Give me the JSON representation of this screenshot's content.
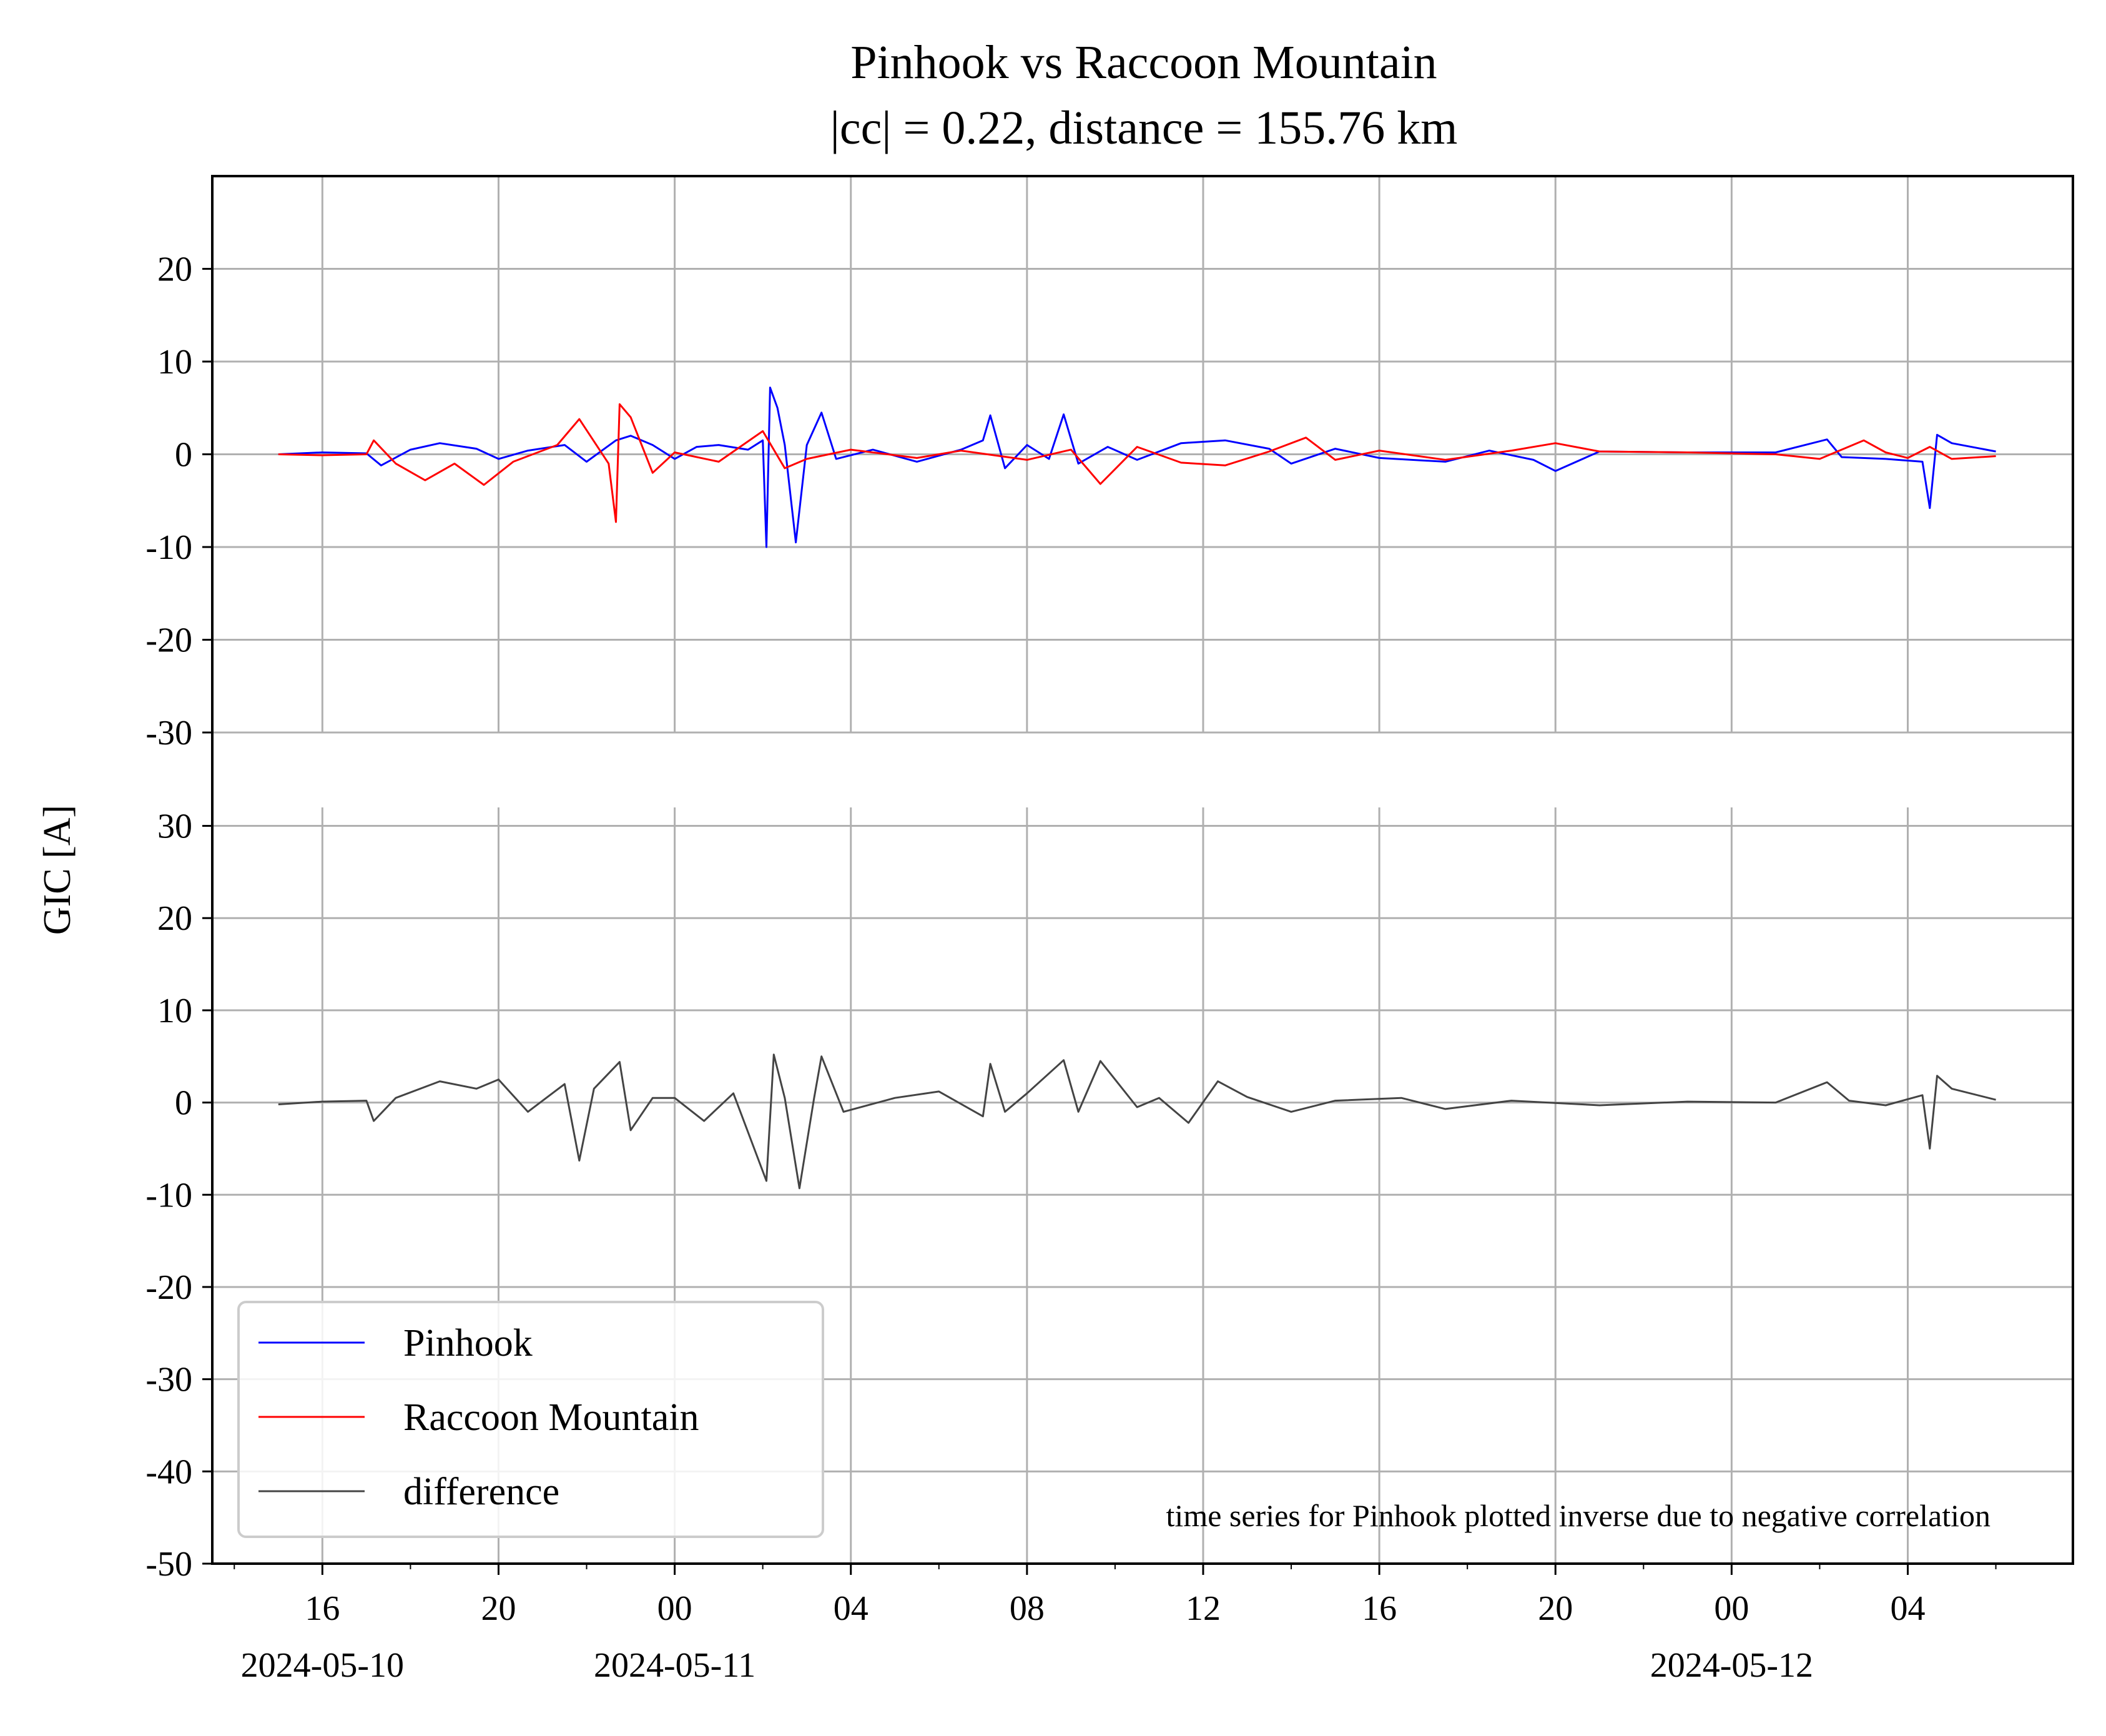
{
  "chart_data": {
    "type": "line",
    "title": "Pinhook vs Raccoon Mountain",
    "subtitle": "|cc| = 0.22, distance = 155.76 km",
    "ylabel": "GIC [A]",
    "xlabel": "",
    "annotation": "time series for Pinhook plotted inverse due to negative correlation",
    "grid": true,
    "legend_placement": "lower-left",
    "x_range": [
      "2024-05-10 13:30",
      "2024-05-12 07:45"
    ],
    "x_ticks": [
      {
        "time": "2024-05-10 16:00",
        "label": "16",
        "date_label": "2024-05-10"
      },
      {
        "time": "2024-05-10 20:00",
        "label": "20",
        "date_label": ""
      },
      {
        "time": "2024-05-11 00:00",
        "label": "00",
        "date_label": "2024-05-11"
      },
      {
        "time": "2024-05-11 04:00",
        "label": "04",
        "date_label": ""
      },
      {
        "time": "2024-05-11 08:00",
        "label": "08",
        "date_label": ""
      },
      {
        "time": "2024-05-11 12:00",
        "label": "12",
        "date_label": ""
      },
      {
        "time": "2024-05-11 16:00",
        "label": "16",
        "date_label": ""
      },
      {
        "time": "2024-05-11 20:00",
        "label": "20",
        "date_label": ""
      },
      {
        "time": "2024-05-12 00:00",
        "label": "00",
        "date_label": "2024-05-12"
      },
      {
        "time": "2024-05-12 04:00",
        "label": "04",
        "date_label": ""
      }
    ],
    "panels": [
      {
        "name": "top",
        "ylim": [
          -30,
          30
        ],
        "yticks": [
          20,
          10,
          0,
          -10,
          -20,
          -30
        ],
        "ytick_labels": [
          "20",
          "10",
          "0",
          "-10",
          "-20",
          "-30"
        ],
        "series": [
          {
            "name": "Pinhook",
            "color": "#0000ff",
            "points": [
              [
                "2024-05-10 15:00",
                0.0
              ],
              [
                "2024-05-10 16:00",
                0.2
              ],
              [
                "2024-05-10 17:00",
                0.1
              ],
              [
                "2024-05-10 17:20",
                -1.2
              ],
              [
                "2024-05-10 18:00",
                0.5
              ],
              [
                "2024-05-10 18:40",
                1.2
              ],
              [
                "2024-05-10 19:30",
                0.6
              ],
              [
                "2024-05-10 20:00",
                -0.5
              ],
              [
                "2024-05-10 20:40",
                0.4
              ],
              [
                "2024-05-10 21:30",
                1.0
              ],
              [
                "2024-05-10 22:00",
                -0.8
              ],
              [
                "2024-05-10 22:40",
                1.5
              ],
              [
                "2024-05-10 23:00",
                2.0
              ],
              [
                "2024-05-10 23:30",
                1.0
              ],
              [
                "2024-05-11 00:00",
                -0.5
              ],
              [
                "2024-05-11 00:30",
                0.8
              ],
              [
                "2024-05-11 01:00",
                1.0
              ],
              [
                "2024-05-11 01:40",
                0.5
              ],
              [
                "2024-05-11 02:00",
                1.5
              ],
              [
                "2024-05-11 02:05",
                -10.0
              ],
              [
                "2024-05-11 02:10",
                7.2
              ],
              [
                "2024-05-11 02:20",
                5.0
              ],
              [
                "2024-05-11 02:30",
                1.0
              ],
              [
                "2024-05-11 02:45",
                -9.5
              ],
              [
                "2024-05-11 03:00",
                1.0
              ],
              [
                "2024-05-11 03:20",
                4.5
              ],
              [
                "2024-05-11 03:40",
                -0.5
              ],
              [
                "2024-05-11 04:30",
                0.5
              ],
              [
                "2024-05-11 05:30",
                -0.8
              ],
              [
                "2024-05-11 06:30",
                0.5
              ],
              [
                "2024-05-11 07:00",
                1.5
              ],
              [
                "2024-05-11 07:10",
                4.2
              ],
              [
                "2024-05-11 07:30",
                -1.5
              ],
              [
                "2024-05-11 08:00",
                1.0
              ],
              [
                "2024-05-11 08:30",
                -0.5
              ],
              [
                "2024-05-11 08:50",
                4.3
              ],
              [
                "2024-05-11 09:10",
                -1.0
              ],
              [
                "2024-05-11 09:50",
                0.8
              ],
              [
                "2024-05-11 10:30",
                -0.6
              ],
              [
                "2024-05-11 11:30",
                1.2
              ],
              [
                "2024-05-11 12:30",
                1.5
              ],
              [
                "2024-05-11 13:30",
                0.6
              ],
              [
                "2024-05-11 14:00",
                -1.0
              ],
              [
                "2024-05-11 15:00",
                0.6
              ],
              [
                "2024-05-11 16:00",
                -0.4
              ],
              [
                "2024-05-11 17:30",
                -0.8
              ],
              [
                "2024-05-11 18:30",
                0.4
              ],
              [
                "2024-05-11 19:30",
                -0.6
              ],
              [
                "2024-05-11 20:00",
                -1.8
              ],
              [
                "2024-05-11 21:00",
                0.3
              ],
              [
                "2024-05-11 23:00",
                0.2
              ],
              [
                "2024-05-12 01:00",
                0.2
              ],
              [
                "2024-05-12 02:10",
                1.6
              ],
              [
                "2024-05-12 02:30",
                -0.3
              ],
              [
                "2024-05-12 03:30",
                -0.5
              ],
              [
                "2024-05-12 04:20",
                -0.8
              ],
              [
                "2024-05-12 04:30",
                -5.8
              ],
              [
                "2024-05-12 04:40",
                2.1
              ],
              [
                "2024-05-12 05:00",
                1.2
              ],
              [
                "2024-05-12 06:00",
                0.3
              ]
            ]
          },
          {
            "name": "Raccoon Mountain",
            "color": "#ff0000",
            "points": [
              [
                "2024-05-10 15:00",
                0.0
              ],
              [
                "2024-05-10 16:00",
                -0.1
              ],
              [
                "2024-05-10 17:00",
                0.0
              ],
              [
                "2024-05-10 17:10",
                1.5
              ],
              [
                "2024-05-10 17:40",
                -1.0
              ],
              [
                "2024-05-10 18:20",
                -2.8
              ],
              [
                "2024-05-10 19:00",
                -1.0
              ],
              [
                "2024-05-10 19:40",
                -3.3
              ],
              [
                "2024-05-10 20:20",
                -0.8
              ],
              [
                "2024-05-10 21:20",
                1.0
              ],
              [
                "2024-05-10 21:50",
                3.8
              ],
              [
                "2024-05-10 22:30",
                -1.0
              ],
              [
                "2024-05-10 22:40",
                -7.3
              ],
              [
                "2024-05-10 22:45",
                5.4
              ],
              [
                "2024-05-10 23:00",
                4.0
              ],
              [
                "2024-05-10 23:30",
                -2.0
              ],
              [
                "2024-05-11 00:00",
                0.2
              ],
              [
                "2024-05-11 01:00",
                -0.8
              ],
              [
                "2024-05-11 02:00",
                2.5
              ],
              [
                "2024-05-11 02:30",
                -1.5
              ],
              [
                "2024-05-11 03:00",
                -0.5
              ],
              [
                "2024-05-11 04:00",
                0.5
              ],
              [
                "2024-05-11 05:30",
                -0.4
              ],
              [
                "2024-05-11 06:30",
                0.4
              ],
              [
                "2024-05-11 08:00",
                -0.6
              ],
              [
                "2024-05-11 09:00",
                0.5
              ],
              [
                "2024-05-11 09:40",
                -3.2
              ],
              [
                "2024-05-11 10:30",
                0.8
              ],
              [
                "2024-05-11 11:30",
                -0.9
              ],
              [
                "2024-05-11 12:30",
                -1.2
              ],
              [
                "2024-05-11 13:30",
                0.3
              ],
              [
                "2024-05-11 14:20",
                1.8
              ],
              [
                "2024-05-11 15:00",
                -0.6
              ],
              [
                "2024-05-11 16:00",
                0.4
              ],
              [
                "2024-05-11 17:30",
                -0.6
              ],
              [
                "2024-05-11 19:00",
                0.4
              ],
              [
                "2024-05-11 20:00",
                1.2
              ],
              [
                "2024-05-11 21:00",
                0.3
              ],
              [
                "2024-05-11 23:00",
                0.2
              ],
              [
                "2024-05-12 01:00",
                0.0
              ],
              [
                "2024-05-12 02:00",
                -0.5
              ],
              [
                "2024-05-12 03:00",
                1.5
              ],
              [
                "2024-05-12 03:30",
                0.2
              ],
              [
                "2024-05-12 04:00",
                -0.4
              ],
              [
                "2024-05-12 04:30",
                0.8
              ],
              [
                "2024-05-12 05:00",
                -0.5
              ],
              [
                "2024-05-12 06:00",
                -0.2
              ]
            ]
          }
        ]
      },
      {
        "name": "bottom",
        "ylim": [
          -50,
          32
        ],
        "yticks": [
          30,
          20,
          10,
          0,
          -10,
          -20,
          -30,
          -40,
          -50
        ],
        "ytick_labels": [
          "30",
          "20",
          "10",
          "0",
          "-10",
          "-20",
          "-30",
          "-40",
          "-50"
        ],
        "series": [
          {
            "name": "difference",
            "color": "#444444",
            "points": [
              [
                "2024-05-10 15:00",
                -0.2
              ],
              [
                "2024-05-10 16:00",
                0.1
              ],
              [
                "2024-05-10 17:00",
                0.2
              ],
              [
                "2024-05-10 17:10",
                -2.0
              ],
              [
                "2024-05-10 17:40",
                0.5
              ],
              [
                "2024-05-10 18:40",
                2.3
              ],
              [
                "2024-05-10 19:30",
                1.5
              ],
              [
                "2024-05-10 20:00",
                2.5
              ],
              [
                "2024-05-10 20:40",
                -1.0
              ],
              [
                "2024-05-10 21:30",
                2.0
              ],
              [
                "2024-05-10 21:50",
                -6.3
              ],
              [
                "2024-05-10 22:10",
                1.5
              ],
              [
                "2024-05-10 22:45",
                4.4
              ],
              [
                "2024-05-10 23:00",
                -3.0
              ],
              [
                "2024-05-10 23:30",
                0.5
              ],
              [
                "2024-05-11 00:00",
                0.5
              ],
              [
                "2024-05-11 00:40",
                -2.0
              ],
              [
                "2024-05-11 01:20",
                1.0
              ],
              [
                "2024-05-11 02:05",
                -8.5
              ],
              [
                "2024-05-11 02:15",
                5.2
              ],
              [
                "2024-05-11 02:30",
                0.5
              ],
              [
                "2024-05-11 02:50",
                -9.3
              ],
              [
                "2024-05-11 03:10",
                0.5
              ],
              [
                "2024-05-11 03:20",
                5.0
              ],
              [
                "2024-05-11 03:50",
                -1.0
              ],
              [
                "2024-05-11 05:00",
                0.5
              ],
              [
                "2024-05-11 06:00",
                1.2
              ],
              [
                "2024-05-11 07:00",
                -1.5
              ],
              [
                "2024-05-11 07:10",
                4.2
              ],
              [
                "2024-05-11 07:30",
                -1.0
              ],
              [
                "2024-05-11 08:00",
                1.0
              ],
              [
                "2024-05-11 08:50",
                4.6
              ],
              [
                "2024-05-11 09:10",
                -1.0
              ],
              [
                "2024-05-11 09:40",
                4.5
              ],
              [
                "2024-05-11 10:30",
                -0.5
              ],
              [
                "2024-05-11 11:00",
                0.5
              ],
              [
                "2024-05-11 11:40",
                -2.2
              ],
              [
                "2024-05-11 12:20",
                2.3
              ],
              [
                "2024-05-11 13:00",
                0.6
              ],
              [
                "2024-05-11 14:00",
                -1.0
              ],
              [
                "2024-05-11 15:00",
                0.2
              ],
              [
                "2024-05-11 16:30",
                0.5
              ],
              [
                "2024-05-11 17:30",
                -0.7
              ],
              [
                "2024-05-11 19:00",
                0.2
              ],
              [
                "2024-05-11 21:00",
                -0.3
              ],
              [
                "2024-05-11 23:00",
                0.1
              ],
              [
                "2024-05-12 01:00",
                0.0
              ],
              [
                "2024-05-12 02:10",
                2.2
              ],
              [
                "2024-05-12 02:40",
                0.2
              ],
              [
                "2024-05-12 03:30",
                -0.3
              ],
              [
                "2024-05-12 04:20",
                0.8
              ],
              [
                "2024-05-12 04:30",
                -5.0
              ],
              [
                "2024-05-12 04:40",
                2.9
              ],
              [
                "2024-05-12 05:00",
                1.5
              ],
              [
                "2024-05-12 06:00",
                0.3
              ]
            ]
          }
        ]
      }
    ]
  }
}
